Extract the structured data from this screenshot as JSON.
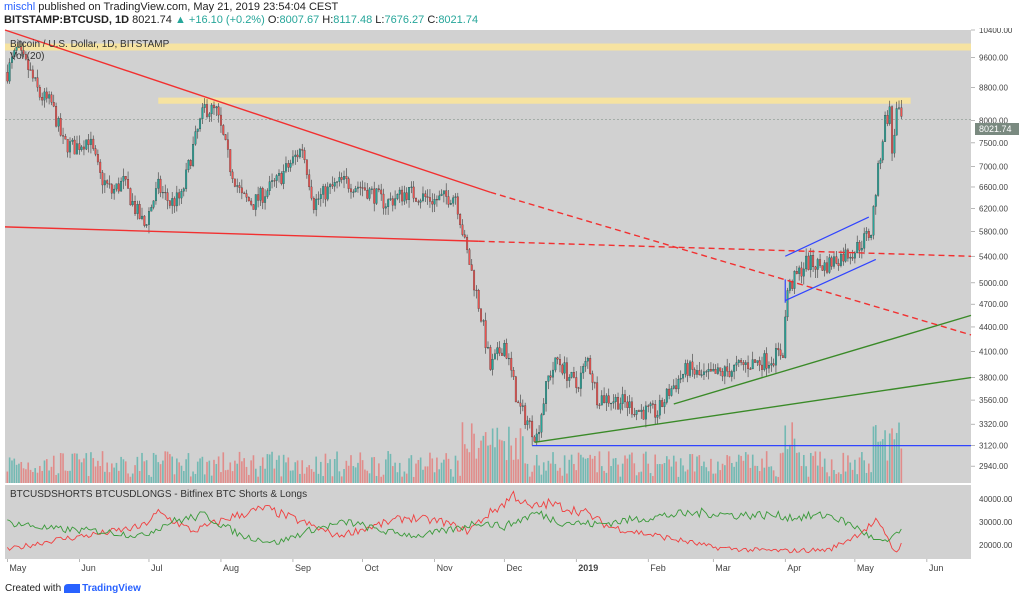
{
  "header": {
    "username": "mischl",
    "published_text": "published on TradingView.com, May 21, 2019 23:54:04 CEST",
    "symbol": "BITSTAMP:BTCUSD, 1D",
    "last": "8021.74",
    "change": "+16.10 (+0.2%)",
    "o_label": "O:",
    "o_value": "8007.67",
    "h_label": "H:",
    "h_value": "8117.48",
    "l_label": "L:",
    "l_value": "7676.27",
    "c_label": "C:",
    "c_value": "8021.74"
  },
  "footer": {
    "created_with": "Created with",
    "brand": "TradingView"
  },
  "colors": {
    "panel_bg": "#d1d1d1",
    "up": "#26a69a",
    "down": "#ef5350",
    "resistance_band": "#f6e3a1",
    "trend_red": "#f23030",
    "trend_green": "#3a8a28",
    "channel_blue": "#3044ff",
    "support_blue": "#2020d0",
    "shorts_line": "#f04040",
    "longs_line": "#3a9a3a",
    "last_price_tag": "#7a8a80"
  },
  "chart_data": [
    {
      "type": "candlestick",
      "title": "Bitcoin / U.S. Dollar, 1D, BITSTAMP",
      "subtitle": "Vol (20)",
      "last_price_label": "8021.74",
      "y_scale": "log",
      "ylim": [
        2800,
        10400
      ],
      "y_tick_labels": [
        "10400.00",
        "9600.00",
        "8800.00",
        "8000.00",
        "7500.00",
        "7000.00",
        "6600.00",
        "6200.00",
        "5800.00",
        "5400.00",
        "5000.00",
        "4700.00",
        "4400.00",
        "4100.00",
        "3800.00",
        "3560.00",
        "3320.00",
        "3120.00",
        "2940.00"
      ],
      "y_ticks": [
        10400,
        9600,
        8800,
        8000,
        7500,
        7000,
        6600,
        6200,
        5800,
        5400,
        5000,
        4700,
        4400,
        4100,
        3800,
        3560,
        3320,
        3120,
        2940
      ],
      "x_tick_labels": [
        "May",
        "Jun",
        "Jul",
        "Aug",
        "Sep",
        "Oct",
        "Nov",
        "Dec",
        "2019",
        "Feb",
        "Mar",
        "Apr",
        "May",
        "Jun"
      ],
      "x_tick_dates": [
        "2018-05-01",
        "2018-06-01",
        "2018-07-01",
        "2018-08-01",
        "2018-09-01",
        "2018-10-01",
        "2018-11-01",
        "2018-12-01",
        "2019-01-01",
        "2019-02-01",
        "2019-03-01",
        "2019-04-01",
        "2019-05-01",
        "2019-06-01"
      ],
      "x_range": [
        "2018-04-30",
        "2019-06-20"
      ],
      "close_anchors": [
        [
          "2018-05-01",
          9200
        ],
        [
          "2018-05-05",
          9800
        ],
        [
          "2018-05-10",
          9300
        ],
        [
          "2018-05-15",
          8600
        ],
        [
          "2018-05-20",
          8400
        ],
        [
          "2018-05-25",
          7500
        ],
        [
          "2018-05-30",
          7400
        ],
        [
          "2018-06-05",
          7600
        ],
        [
          "2018-06-10",
          6800
        ],
        [
          "2018-06-15",
          6500
        ],
        [
          "2018-06-20",
          6700
        ],
        [
          "2018-06-25",
          6200
        ],
        [
          "2018-06-29",
          5900
        ],
        [
          "2018-07-05",
          6600
        ],
        [
          "2018-07-10",
          6300
        ],
        [
          "2018-07-15",
          6400
        ],
        [
          "2018-07-20",
          7400
        ],
        [
          "2018-07-25",
          8300
        ],
        [
          "2018-07-30",
          8200
        ],
        [
          "2018-08-05",
          7000
        ],
        [
          "2018-08-10",
          6400
        ],
        [
          "2018-08-15",
          6300
        ],
        [
          "2018-08-20",
          6500
        ],
        [
          "2018-08-25",
          6700
        ],
        [
          "2018-08-30",
          7000
        ],
        [
          "2018-09-05",
          7400
        ],
        [
          "2018-09-10",
          6300
        ],
        [
          "2018-09-15",
          6500
        ],
        [
          "2018-09-22",
          6700
        ],
        [
          "2018-10-01",
          6600
        ],
        [
          "2018-10-11",
          6300
        ],
        [
          "2018-10-20",
          6500
        ],
        [
          "2018-11-01",
          6350
        ],
        [
          "2018-11-10",
          6450
        ],
        [
          "2018-11-14",
          5600
        ],
        [
          "2018-11-20",
          4700
        ],
        [
          "2018-11-25",
          3900
        ],
        [
          "2018-12-01",
          4200
        ],
        [
          "2018-12-07",
          3500
        ],
        [
          "2018-12-15",
          3200
        ],
        [
          "2018-12-20",
          3800
        ],
        [
          "2018-12-24",
          4000
        ],
        [
          "2019-01-01",
          3700
        ],
        [
          "2019-01-06",
          4000
        ],
        [
          "2019-01-10",
          3600
        ],
        [
          "2019-01-20",
          3550
        ],
        [
          "2019-01-28",
          3450
        ],
        [
          "2019-02-05",
          3430
        ],
        [
          "2019-02-10",
          3650
        ],
        [
          "2019-02-18",
          3900
        ],
        [
          "2019-02-24",
          3800
        ],
        [
          "2019-03-05",
          3850
        ],
        [
          "2019-03-15",
          3950
        ],
        [
          "2019-03-25",
          4000
        ],
        [
          "2019-03-31",
          4100
        ],
        [
          "2019-04-02",
          4900
        ],
        [
          "2019-04-10",
          5300
        ],
        [
          "2019-04-18",
          5250
        ],
        [
          "2019-04-25",
          5400
        ],
        [
          "2019-05-01",
          5500
        ],
        [
          "2019-05-08",
          5800
        ],
        [
          "2019-05-11",
          6900
        ],
        [
          "2019-05-14",
          8000
        ],
        [
          "2019-05-16",
          8200
        ],
        [
          "2019-05-17",
          7300
        ],
        [
          "2019-05-19",
          8200
        ],
        [
          "2019-05-21",
          8020
        ]
      ],
      "volume_panel": {
        "label": "Vol (20)"
      },
      "resistance_bands": [
        {
          "from": 9800,
          "to": 10000,
          "start": "2018-04-30",
          "end": "2019-06-20"
        },
        {
          "from": 8400,
          "to": 8550,
          "start": "2018-07-05",
          "end": "2019-05-25"
        }
      ],
      "trendlines": [
        {
          "style": "solid",
          "color": "red",
          "points": [
            [
              "2018-04-30",
              10400
            ],
            [
              "2018-11-25",
              6500
            ]
          ]
        },
        {
          "style": "dashed",
          "color": "red",
          "points": [
            [
              "2018-11-25",
              6500
            ],
            [
              "2019-06-20",
              4300
            ]
          ]
        },
        {
          "style": "solid",
          "color": "red",
          "points": [
            [
              "2018-04-30",
              5880
            ],
            [
              "2018-11-20",
              5640
            ]
          ]
        },
        {
          "style": "dashed",
          "color": "red",
          "points": [
            [
              "2018-11-20",
              5640
            ],
            [
              "2019-06-20",
              5400
            ]
          ]
        },
        {
          "style": "solid",
          "color": "green",
          "points": [
            [
              "2019-02-12",
              3520
            ],
            [
              "2019-06-20",
              4550
            ]
          ]
        },
        {
          "style": "solid",
          "color": "green",
          "points": [
            [
              "2018-12-14",
              3150
            ],
            [
              "2019-06-20",
              3800
            ]
          ]
        },
        {
          "style": "solid",
          "color": "blue",
          "points": [
            [
              "2019-04-01",
              5400
            ],
            [
              "2019-05-07",
              6050
            ]
          ]
        },
        {
          "style": "solid",
          "color": "blue",
          "points": [
            [
              "2019-04-01",
              4750
            ],
            [
              "2019-05-10",
              5350
            ]
          ]
        },
        {
          "style": "solid",
          "color": "blue",
          "points": [
            [
              "2018-12-13",
              3120
            ],
            [
              "2019-06-20",
              3120
            ]
          ]
        },
        {
          "style": "solid",
          "color": "blue",
          "points": [
            [
              "2019-04-01",
              4720
            ],
            [
              "2019-04-01",
              5050
            ]
          ]
        }
      ]
    },
    {
      "type": "line",
      "title": "BTCUSDSHORTS BTCUSDLONGS - Bitfinex BTC Shorts & Longs",
      "ylim": [
        14000,
        46000
      ],
      "y_tick_labels": [
        "40000.00",
        "30000.00",
        "20000.00"
      ],
      "y_ticks": [
        40000,
        30000,
        20000
      ],
      "series": [
        {
          "color": "red",
          "anchors": [
            [
              "2018-05-01",
              18000
            ],
            [
              "2018-05-20",
              22000
            ],
            [
              "2018-06-10",
              25000
            ],
            [
              "2018-06-28",
              28000
            ],
            [
              "2018-07-05",
              34000
            ],
            [
              "2018-07-20",
              26000
            ],
            [
              "2018-08-05",
              32000
            ],
            [
              "2018-08-20",
              36000
            ],
            [
              "2018-09-05",
              30000
            ],
            [
              "2018-09-20",
              24000
            ],
            [
              "2018-10-05",
              28000
            ],
            [
              "2018-10-20",
              32000
            ],
            [
              "2018-11-05",
              30000
            ],
            [
              "2018-11-15",
              26000
            ],
            [
              "2018-11-25",
              34000
            ],
            [
              "2018-12-01",
              38000
            ],
            [
              "2018-12-05",
              42000
            ],
            [
              "2018-12-12",
              36000
            ],
            [
              "2018-12-20",
              38000
            ],
            [
              "2019-01-05",
              34000
            ],
            [
              "2019-01-15",
              28000
            ],
            [
              "2019-01-25",
              26000
            ],
            [
              "2019-02-05",
              24000
            ],
            [
              "2019-02-20",
              21000
            ],
            [
              "2019-03-01",
              19000
            ],
            [
              "2019-03-15",
              18000
            ],
            [
              "2019-04-01",
              17500
            ],
            [
              "2019-04-20",
              18000
            ],
            [
              "2019-05-01",
              24000
            ],
            [
              "2019-05-10",
              30000
            ],
            [
              "2019-05-15",
              24000
            ],
            [
              "2019-05-18",
              17000
            ],
            [
              "2019-05-21",
              20000
            ]
          ]
        },
        {
          "color": "green",
          "anchors": [
            [
              "2018-05-01",
              30000
            ],
            [
              "2018-05-20",
              27000
            ],
            [
              "2018-06-10",
              26000
            ],
            [
              "2018-06-28",
              24000
            ],
            [
              "2018-07-10",
              30000
            ],
            [
              "2018-07-25",
              33000
            ],
            [
              "2018-08-10",
              24000
            ],
            [
              "2018-08-25",
              21000
            ],
            [
              "2018-09-10",
              27000
            ],
            [
              "2018-09-25",
              30000
            ],
            [
              "2018-10-10",
              26000
            ],
            [
              "2018-10-25",
              24000
            ],
            [
              "2018-11-10",
              27000
            ],
            [
              "2018-11-20",
              30000
            ],
            [
              "2018-12-01",
              28000
            ],
            [
              "2018-12-15",
              34000
            ],
            [
              "2018-12-25",
              30000
            ],
            [
              "2019-01-10",
              29000
            ],
            [
              "2019-01-25",
              31000
            ],
            [
              "2019-02-10",
              33000
            ],
            [
              "2019-02-25",
              34000
            ],
            [
              "2019-03-10",
              33000
            ],
            [
              "2019-03-25",
              33000
            ],
            [
              "2019-04-05",
              32000
            ],
            [
              "2019-04-20",
              33000
            ],
            [
              "2019-05-01",
              28000
            ],
            [
              "2019-05-10",
              22000
            ],
            [
              "2019-05-15",
              21000
            ],
            [
              "2019-05-18",
              25000
            ],
            [
              "2019-05-21",
              25500
            ]
          ]
        }
      ]
    }
  ]
}
